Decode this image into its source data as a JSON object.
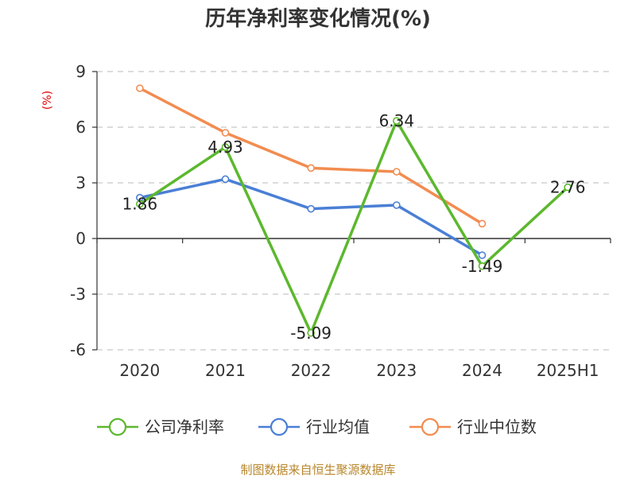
{
  "chart_data": {
    "type": "line",
    "title": "历年净利率变化情况(%)",
    "ylabel": "(%)",
    "categories": [
      "2020",
      "2021",
      "2022",
      "2023",
      "2024",
      "2025H1"
    ],
    "ylim": [
      -6,
      9
    ],
    "yticks": [
      "9",
      "6",
      "3",
      "0",
      "-3",
      "-6"
    ],
    "grid": "horizontal-dashed",
    "legend_position": "bottom",
    "series": [
      {
        "name": "公司净利率",
        "color": "#5cb82e",
        "values": [
          1.86,
          4.93,
          -5.09,
          6.34,
          -1.49,
          2.76
        ],
        "labels": [
          "1.86",
          "4.93",
          "-5.09",
          "6.34",
          "-1.49",
          "2.76"
        ]
      },
      {
        "name": "行业均值",
        "color": "#4a7fd6",
        "values": [
          2.2,
          3.2,
          1.6,
          1.8,
          -0.9,
          null
        ]
      },
      {
        "name": "行业中位数",
        "color": "#f28c50",
        "values": [
          8.1,
          5.7,
          3.8,
          3.6,
          0.8,
          null
        ]
      }
    ],
    "source": "制图数据来自恒生聚源数据库"
  }
}
